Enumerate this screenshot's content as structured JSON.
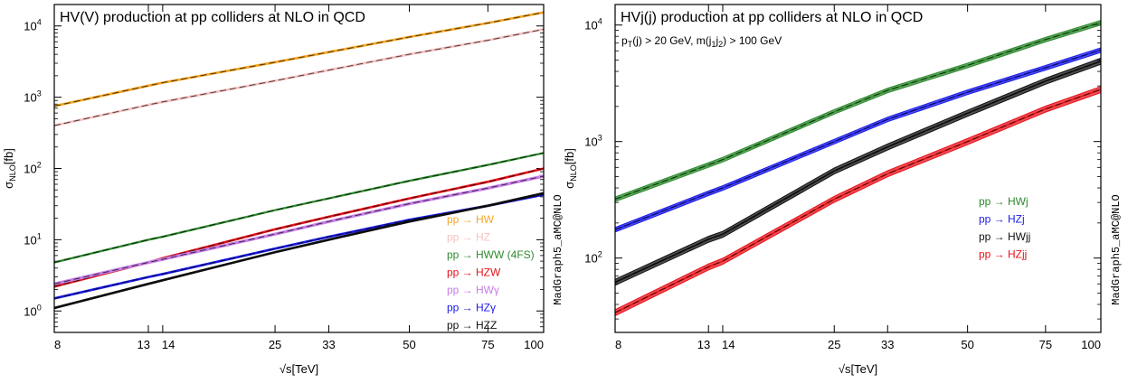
{
  "chart_data": [
    {
      "type": "line",
      "title": "HV(V) production at pp colliders at NLO in QCD",
      "subtitle": "",
      "xlabel": "√s[TeV]",
      "ylabel_main": "σ",
      "ylabel_sub": "NLO",
      "ylabel_unit": "[fb]",
      "x_scale": "log",
      "y_scale": "log",
      "xlim": [
        8,
        100
      ],
      "ylim": [
        0.5,
        20000
      ],
      "x_ticks": [
        8,
        13,
        14,
        25,
        33,
        50,
        75,
        100
      ],
      "x_tick_labels": [
        "8",
        "13",
        "14",
        "25",
        "33",
        "50",
        "75",
        "100"
      ],
      "y_ticks": [
        1,
        10,
        100,
        1000,
        10000
      ],
      "y_tick_exponents": [
        "0",
        "1",
        "2",
        "3",
        "4"
      ],
      "y_tick_base": "10",
      "watermark": "MadGraph5_aMC@NLO",
      "legend_position": "bottom-right",
      "series": [
        {
          "name": "pp → HW",
          "color": "#f5a623",
          "band": 0.025,
          "x": [
            8,
            13,
            14,
            25,
            33,
            50,
            75,
            100
          ],
          "y": [
            750,
            1450,
            1600,
            3100,
            4300,
            7000,
            11000,
            15500
          ]
        },
        {
          "name": "pp → HZ",
          "color": "#f7c1c1",
          "band": 0.025,
          "x": [
            8,
            13,
            14,
            25,
            33,
            50,
            75,
            100
          ],
          "y": [
            400,
            780,
            860,
            1700,
            2400,
            4000,
            6300,
            9000
          ]
        },
        {
          "name": "pp → HWW (4FS)",
          "color": "#2e8b2e",
          "band": 0.02,
          "x": [
            8,
            13,
            14,
            25,
            33,
            50,
            75,
            100
          ],
          "y": [
            4.8,
            10,
            11,
            26,
            38,
            67,
            112,
            165
          ]
        },
        {
          "name": "pp → HZW",
          "color": "#e8121a",
          "band": 0.025,
          "x": [
            8,
            13,
            14,
            25,
            33,
            50,
            75,
            100
          ],
          "y": [
            2.2,
            4.8,
            5.5,
            14,
            21,
            38,
            65,
            100
          ]
        },
        {
          "name": "pp → HWγ",
          "color": "#c77ee8",
          "band": 0.035,
          "x": [
            8,
            13,
            14,
            25,
            33,
            50,
            75,
            100
          ],
          "y": [
            2.4,
            4.8,
            5.3,
            12,
            18,
            32,
            53,
            78
          ]
        },
        {
          "name": "pp → HZγ",
          "color": "#1a1ae8",
          "band": 0.025,
          "x": [
            8,
            13,
            14,
            25,
            33,
            50,
            75,
            100
          ],
          "y": [
            1.5,
            3.0,
            3.3,
            7.5,
            11,
            19,
            30,
            43
          ]
        },
        {
          "name": "pp → HZZ",
          "color": "#111111",
          "band": 0.025,
          "x": [
            8,
            13,
            14,
            25,
            33,
            50,
            75,
            100
          ],
          "y": [
            1.1,
            2.4,
            2.7,
            6.7,
            10,
            18,
            30,
            45
          ]
        }
      ]
    },
    {
      "type": "line",
      "title": "HVj(j) production at pp colliders at NLO in QCD",
      "subtitle": "p_T(j) > 20 GeV, m(j_1j_2) > 100 GeV",
      "subtitle_parts": [
        {
          "t": "p",
          "s": "base"
        },
        {
          "t": "T",
          "s": "sub"
        },
        {
          "t": "(j) > 20 GeV, m(j",
          "s": "base"
        },
        {
          "t": "1",
          "s": "sub"
        },
        {
          "t": "j",
          "s": "base"
        },
        {
          "t": "2",
          "s": "sub"
        },
        {
          "t": ") > 100 GeV",
          "s": "base"
        }
      ],
      "xlabel": "√s[TeV]",
      "ylabel_main": "σ",
      "ylabel_sub": "NLO",
      "ylabel_unit": "[fb]",
      "x_scale": "log",
      "y_scale": "log",
      "xlim": [
        8,
        100
      ],
      "ylim": [
        23,
        15000
      ],
      "x_ticks": [
        8,
        13,
        14,
        25,
        33,
        50,
        75,
        100
      ],
      "x_tick_labels": [
        "8",
        "13",
        "14",
        "25",
        "33",
        "50",
        "75",
        "100"
      ],
      "y_ticks": [
        100,
        1000,
        10000
      ],
      "y_tick_exponents": [
        "2",
        "3",
        "4"
      ],
      "y_tick_base": "10",
      "watermark": "MadGraph5_aMC@NLO",
      "legend_position": "center-right",
      "series": [
        {
          "name": "pp → HWj",
          "color": "#2e8b2e",
          "band": 0.045,
          "x": [
            8,
            13,
            14,
            25,
            33,
            50,
            75,
            100
          ],
          "y": [
            320,
            630,
            700,
            1800,
            2750,
            4500,
            7500,
            10500
          ]
        },
        {
          "name": "pp → HZj",
          "color": "#1a1ae8",
          "band": 0.045,
          "x": [
            8,
            13,
            14,
            25,
            33,
            50,
            75,
            100
          ],
          "y": [
            175,
            360,
            400,
            1000,
            1550,
            2650,
            4300,
            6100
          ]
        },
        {
          "name": "pp → HWjj",
          "color": "#111111",
          "band": 0.06,
          "x": [
            8,
            13,
            14,
            25,
            33,
            50,
            75,
            100
          ],
          "y": [
            62,
            145,
            160,
            560,
            900,
            1750,
            3300,
            4900
          ]
        },
        {
          "name": "pp → HZjj",
          "color": "#e8121a",
          "band": 0.06,
          "x": [
            8,
            13,
            14,
            25,
            33,
            50,
            75,
            100
          ],
          "y": [
            34,
            84,
            94,
            320,
            530,
            1000,
            1900,
            2800
          ]
        }
      ]
    }
  ]
}
